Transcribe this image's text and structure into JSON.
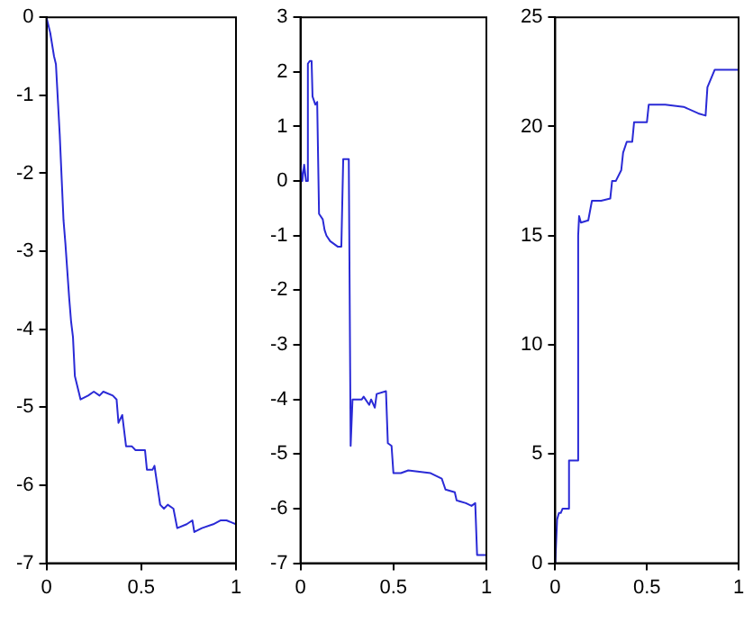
{
  "chart_data": [
    {
      "type": "line",
      "xlim": [
        0,
        1
      ],
      "xticks": [
        0,
        0.5,
        1
      ],
      "ylim": [
        -7,
        0
      ],
      "yticks": [
        -7,
        -6,
        -5,
        -4,
        -3,
        -2,
        -1,
        0
      ],
      "grid": false,
      "legend": false,
      "marker": "none",
      "line_style": "solid",
      "series": [
        {
          "color": "#2a2ad6",
          "x": [
            0,
            0.02,
            0.04,
            0.05,
            0.07,
            0.09,
            0.1,
            0.12,
            0.13,
            0.14,
            0.15,
            0.17,
            0.18,
            0.22,
            0.25,
            0.28,
            0.3,
            0.35,
            0.37,
            0.38,
            0.4,
            0.42,
            0.45,
            0.47,
            0.52,
            0.53,
            0.56,
            0.57,
            0.6,
            0.62,
            0.64,
            0.67,
            0.69,
            0.74,
            0.77,
            0.78,
            0.82,
            0.88,
            0.92,
            0.95,
            1
          ],
          "values": [
            0,
            -0.2,
            -0.5,
            -0.6,
            -1.5,
            -2.6,
            -2.9,
            -3.6,
            -3.9,
            -4.1,
            -4.6,
            -4.8,
            -4.9,
            -4.85,
            -4.8,
            -4.85,
            -4.8,
            -4.85,
            -4.9,
            -5.2,
            -5.1,
            -5.5,
            -5.5,
            -5.55,
            -5.55,
            -5.8,
            -5.8,
            -5.75,
            -6.25,
            -6.3,
            -6.25,
            -6.3,
            -6.55,
            -6.5,
            -6.45,
            -6.6,
            -6.55,
            -6.5,
            -6.45,
            -6.45,
            -6.5
          ]
        }
      ]
    },
    {
      "type": "line",
      "xlim": [
        0,
        1
      ],
      "xticks": [
        0,
        0.5,
        1
      ],
      "ylim": [
        -7,
        3
      ],
      "yticks": [
        -7,
        -6,
        -5,
        -4,
        -3,
        -2,
        -1,
        0,
        1,
        2,
        3
      ],
      "grid": false,
      "legend": false,
      "marker": "none",
      "line_style": "solid",
      "series": [
        {
          "color": "#2a2ad6",
          "x": [
            0,
            0.01,
            0.02,
            0.03,
            0.04,
            0.04,
            0.05,
            0.06,
            0.065,
            0.08,
            0.09,
            0.1,
            0.12,
            0.13,
            0.14,
            0.16,
            0.2,
            0.22,
            0.23,
            0.26,
            0.27,
            0.28,
            0.33,
            0.34,
            0.37,
            0.38,
            0.4,
            0.41,
            0.46,
            0.47,
            0.49,
            0.5,
            0.54,
            0.58,
            0.7,
            0.76,
            0.78,
            0.83,
            0.84,
            0.89,
            0.92,
            0.94,
            0.95,
            1
          ],
          "values": [
            0.3,
            0,
            0.3,
            0,
            0,
            2.15,
            2.2,
            2.2,
            1.55,
            1.4,
            1.45,
            -0.6,
            -0.7,
            -0.9,
            -1,
            -1.1,
            -1.2,
            -1.2,
            0.4,
            0.4,
            -4.85,
            -4,
            -4,
            -3.95,
            -4.1,
            -4,
            -4.15,
            -3.9,
            -3.85,
            -4.8,
            -4.85,
            -5.35,
            -5.35,
            -5.3,
            -5.35,
            -5.45,
            -5.65,
            -5.7,
            -5.85,
            -5.9,
            -5.95,
            -5.9,
            -6.85,
            -6.85
          ]
        }
      ]
    },
    {
      "type": "line",
      "xlim": [
        0,
        1
      ],
      "xticks": [
        0,
        0.5,
        1
      ],
      "ylim": [
        0,
        25
      ],
      "yticks": [
        0,
        5,
        10,
        15,
        20,
        25
      ],
      "grid": false,
      "legend": false,
      "marker": "none",
      "line_style": "solid",
      "series": [
        {
          "color": "#2a2ad6",
          "x": [
            0,
            0.01,
            0.02,
            0.03,
            0.04,
            0.07,
            0.075,
            0.12,
            0.125,
            0.13,
            0.14,
            0.18,
            0.2,
            0.25,
            0.3,
            0.31,
            0.33,
            0.36,
            0.37,
            0.39,
            0.42,
            0.43,
            0.5,
            0.51,
            0.6,
            0.7,
            0.78,
            0.82,
            0.83,
            0.87,
            1
          ],
          "values": [
            0,
            2,
            2.3,
            2.3,
            2.5,
            2.5,
            4.7,
            4.7,
            15,
            15.9,
            15.6,
            15.7,
            16.6,
            16.6,
            16.7,
            17.5,
            17.5,
            18,
            18.8,
            19.3,
            19.3,
            20.2,
            20.2,
            21,
            21,
            20.9,
            20.6,
            20.5,
            21.8,
            22.6,
            22.6
          ]
        }
      ]
    }
  ]
}
